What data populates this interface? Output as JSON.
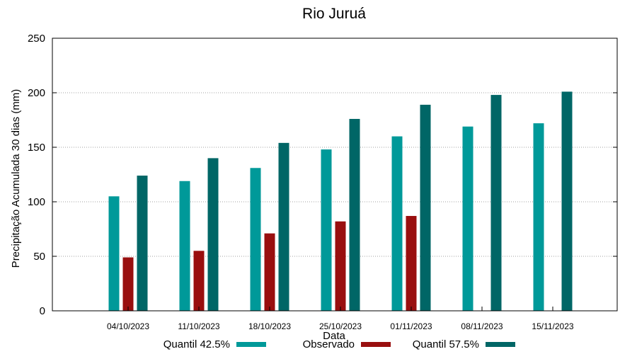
{
  "chart_data": {
    "type": "bar",
    "title": "Rio Juruá",
    "xlabel": "Data",
    "ylabel": "Precipitação Acumulada 30 dias (mm)",
    "ylim": [
      0,
      250
    ],
    "yticks": [
      "0",
      "50",
      "100",
      "150",
      "200",
      "250"
    ],
    "grid": true,
    "legend_position": "bottom",
    "categories": [
      "04/10/2023",
      "11/10/2023",
      "18/10/2023",
      "25/10/2023",
      "01/11/2023",
      "08/11/2023",
      "15/11/2023"
    ],
    "series": [
      {
        "name": "Quantil 42.5%",
        "color": "#009999",
        "values": [
          105,
          119,
          131,
          148,
          160,
          169,
          172
        ]
      },
      {
        "name": "Observado",
        "color": "#990f0f",
        "values": [
          49,
          55,
          71,
          82,
          87,
          null,
          null
        ]
      },
      {
        "name": "Quantil 57.5%",
        "color": "#006666",
        "values": [
          124,
          140,
          154,
          176,
          189,
          198,
          201
        ]
      }
    ]
  }
}
